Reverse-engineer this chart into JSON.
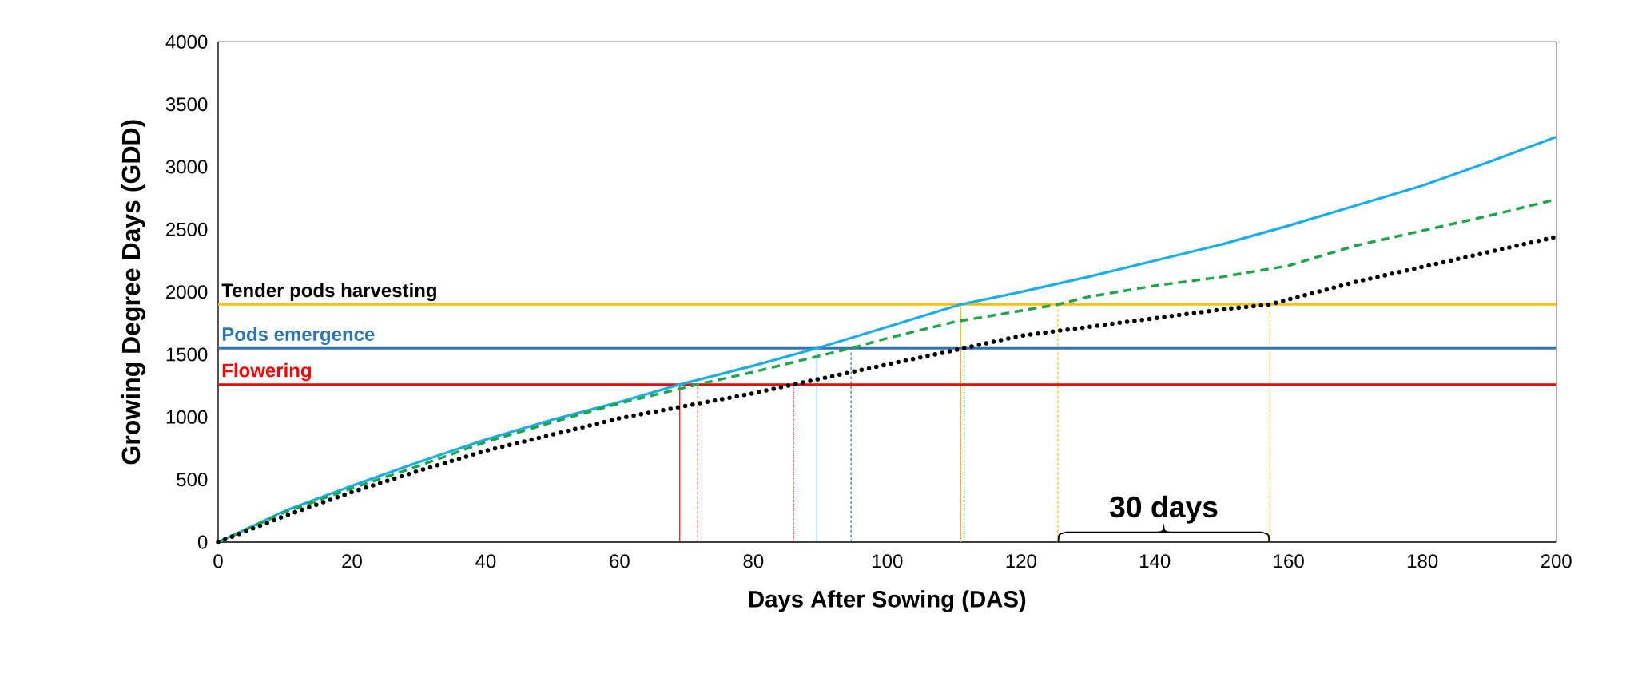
{
  "chart_data": {
    "type": "line",
    "xlabel": "Days After Sowing (DAS)",
    "ylabel": "Growing Degree Days (GDD)",
    "xlim": [
      0,
      200
    ],
    "xticks": [
      0,
      20,
      40,
      60,
      80,
      100,
      120,
      140,
      160,
      180,
      200
    ],
    "ylim": [
      0,
      4000
    ],
    "yticks": [
      0,
      500,
      1000,
      1500,
      2000,
      2500,
      3000,
      3500,
      4000
    ],
    "grid": false,
    "marker": "none",
    "series": [
      {
        "color": "#1aaee8",
        "line_style": "solid",
        "x": [
          0,
          10,
          20,
          30,
          40,
          50,
          60,
          69,
          80,
          89.5,
          100,
          111,
          120,
          130,
          140,
          150,
          160,
          170,
          180,
          190,
          200
        ],
        "values": [
          0,
          250,
          450,
          640,
          820,
          980,
          1120,
          1260,
          1410,
          1550,
          1720,
          1900,
          2000,
          2120,
          2250,
          2380,
          2530,
          2690,
          2850,
          3040,
          3240
        ]
      },
      {
        "color": "#1fa64a",
        "line_style": "dashed",
        "x": [
          0,
          10,
          20,
          30,
          40,
          50,
          60,
          71.7,
          80,
          94.6,
          100,
          110,
          125.5,
          130,
          140,
          150,
          160,
          170,
          180,
          190,
          200
        ],
        "values": [
          0,
          240,
          430,
          610,
          800,
          960,
          1110,
          1260,
          1360,
          1550,
          1630,
          1760,
          1900,
          1960,
          2050,
          2120,
          2210,
          2370,
          2490,
          2610,
          2740
        ]
      },
      {
        "color": "#000000",
        "line_style": "dotted",
        "x": [
          0,
          10,
          20,
          30,
          40,
          50,
          60,
          70,
          80,
          86,
          100,
          111.5,
          120,
          130,
          140,
          150,
          157.2,
          170,
          180,
          190,
          200
        ],
        "values": [
          0,
          210,
          400,
          570,
          730,
          860,
          990,
          1090,
          1190,
          1260,
          1420,
          1550,
          1650,
          1720,
          1790,
          1860,
          1900,
          2080,
          2200,
          2320,
          2440
        ]
      }
    ],
    "ref_lines": [
      {
        "axis": "y",
        "value": 1900,
        "label": "Tender pods harvesting",
        "color": "#ffc000"
      },
      {
        "axis": "y",
        "value": 1550,
        "label": "Pods emergence",
        "color": "#2e75b6"
      },
      {
        "axis": "y",
        "value": 1260,
        "label": "Flowering",
        "color": "#ff0000"
      },
      {
        "axis": "x",
        "value": 69,
        "color": "#ff0000",
        "line_style": "solid"
      },
      {
        "axis": "x",
        "value": 71.7,
        "color": "#ff0000",
        "line_style": "dashed"
      },
      {
        "axis": "x",
        "value": 86,
        "color": "#ff0000",
        "line_style": "dotted"
      },
      {
        "axis": "x",
        "value": 89.5,
        "color": "#2e75b6",
        "line_style": "solid"
      },
      {
        "axis": "x",
        "value": 94.6,
        "color": "#2e75b6",
        "line_style": "dashed"
      },
      {
        "axis": "x",
        "value": 111.5,
        "color": "#2e75b6",
        "line_style": "dotted"
      },
      {
        "axis": "x",
        "value": 111,
        "color": "#ffc000",
        "line_style": "solid"
      },
      {
        "axis": "x",
        "value": 125.5,
        "color": "#ffc000",
        "line_style": "dashed"
      },
      {
        "axis": "x",
        "value": 157.2,
        "color": "#ffc000",
        "line_style": "dotted"
      }
    ],
    "annotations": [
      "30 days"
    ]
  }
}
